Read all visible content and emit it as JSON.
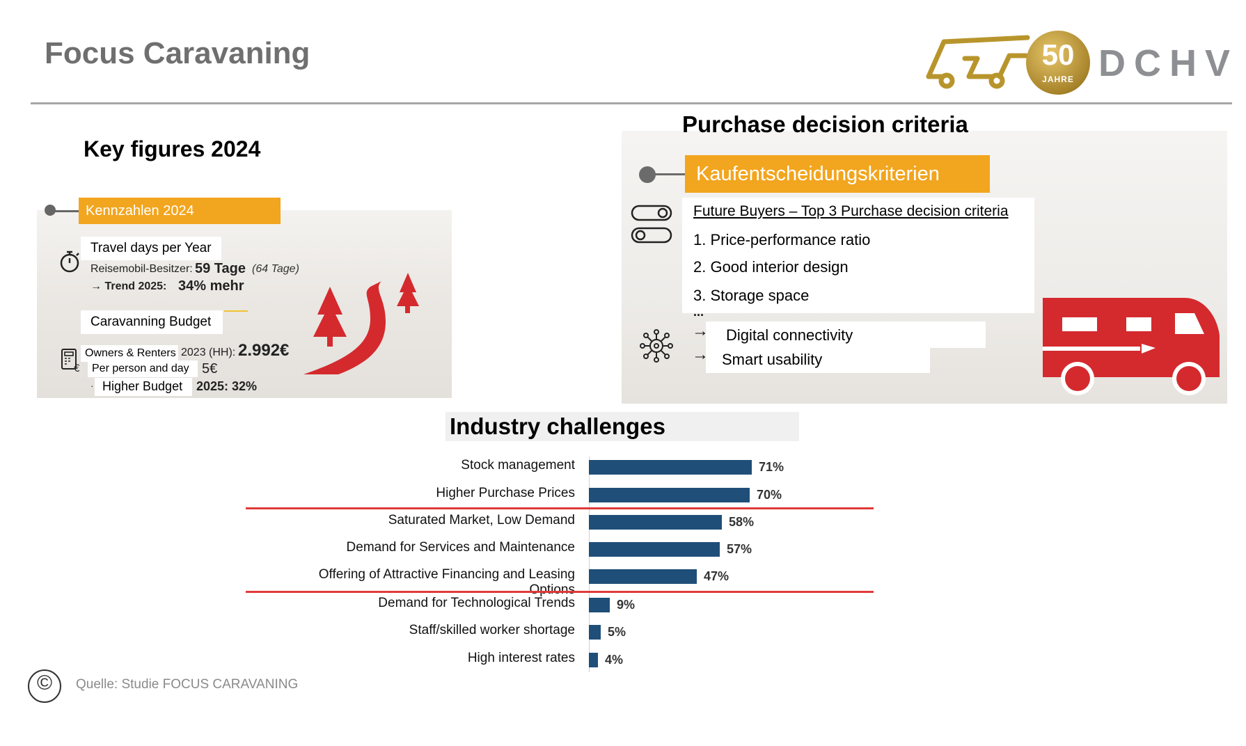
{
  "header": {
    "title": "Focus Caravaning",
    "logo": {
      "badge_number": "50",
      "badge_sub": "JAHRE",
      "brand": "DCHV"
    }
  },
  "key_figures": {
    "heading": "Key figures 2024",
    "tag": "Kennzahlen 2024",
    "travel_days_label": "Travel days per Year",
    "owners_label": "Reisemobil-Besitzer:",
    "owners_value": "59 Tage",
    "owners_prev": "(64 Tage)",
    "trend_label": "→ Trend 2025:",
    "trend_value": "34% mehr",
    "budget_label": "Caravanning Budget",
    "hh_label": "Owners & Renters",
    "hh_year": "2023 (HH):",
    "hh_value": "2.992€",
    "per_day_label": "Per person and day",
    "per_day_value": "5€",
    "higher_label": "Higher Budget",
    "higher_value": "2025: 32%"
  },
  "purchase": {
    "heading": "Purchase decision criteria",
    "tag": "Kaufentscheidungskriterien",
    "subheading": "Future Buyers – Top 3 Purchase decision criteria",
    "items": [
      "1. Price-performance ratio",
      "2. Good interior design",
      "3. Storage space"
    ],
    "ellipsis": "...",
    "extras": [
      "Digital connectivity",
      "Smart usability"
    ]
  },
  "chart_data": {
    "type": "bar",
    "orientation": "horizontal",
    "title": "Industry challenges",
    "categories": [
      "Stock management",
      "Higher Purchase Prices",
      "Saturated Market, Low Demand",
      "Demand for Services and Maintenance",
      "Offering of Attractive Financing and Leasing Options",
      "Demand for Technological Trends",
      "Staff/skilled worker shortage",
      "High interest rates"
    ],
    "values": [
      71,
      70,
      58,
      57,
      47,
      9,
      5,
      4
    ],
    "labels": [
      "71%",
      "70%",
      "58%",
      "57%",
      "47%",
      "9%",
      "5%",
      "4%"
    ],
    "unit": "%",
    "xlim": [
      0,
      100
    ],
    "bar_color": "#1f4e79",
    "separators_after": [
      1,
      4
    ]
  },
  "footer": {
    "copyright_symbol": "©",
    "source": "Quelle: Studie FOCUS CARAVANING"
  },
  "colors": {
    "accent_orange": "#f2a51e",
    "accent_red": "#d42a2e",
    "title_gray": "#6f6f6f"
  }
}
